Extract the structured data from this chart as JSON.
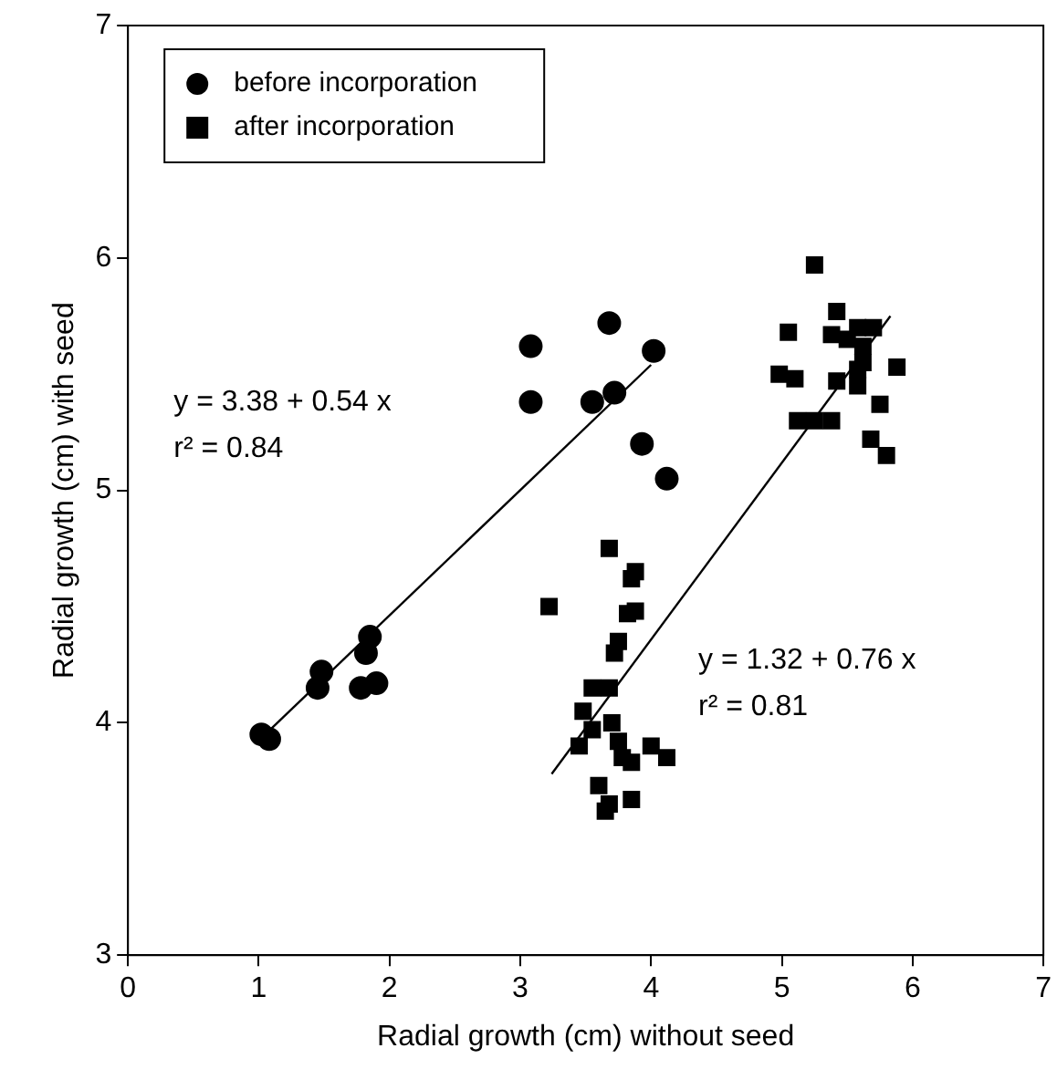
{
  "chart_data": {
    "type": "scatter",
    "xlabel": "Radial growth (cm) without seed",
    "ylabel": "Radial growth (cm) with seed",
    "xlim": [
      0,
      7
    ],
    "xticks": [
      0,
      1,
      2,
      3,
      4,
      5,
      6,
      7
    ],
    "ylim": [
      3,
      7
    ],
    "yticks": [
      3,
      4,
      5,
      6,
      7
    ],
    "grid": false,
    "legend": "top left",
    "series": [
      {
        "name": "before incorporation",
        "color": "#000000",
        "marker": "circle",
        "x": [
          1.02,
          1.08,
          1.45,
          1.48,
          1.78,
          1.82,
          1.85,
          1.9,
          3.08,
          3.08,
          3.55,
          3.68,
          3.72,
          3.93,
          4.02,
          4.12
        ],
        "values": [
          3.95,
          3.93,
          4.15,
          4.22,
          4.15,
          4.3,
          4.37,
          4.17,
          5.62,
          5.38,
          5.38,
          5.72,
          5.42,
          5.2,
          5.6,
          5.05
        ]
      },
      {
        "name": "after incorporation",
        "color": "#000000",
        "marker": "square",
        "x": [
          3.22,
          3.68,
          3.85,
          3.88,
          3.82,
          3.88,
          3.75,
          3.72,
          3.68,
          3.55,
          3.48,
          3.55,
          3.45,
          3.7,
          3.75,
          3.78,
          3.85,
          4.0,
          4.12,
          3.6,
          3.65,
          3.68,
          3.85,
          5.25,
          5.42,
          5.05,
          5.38,
          5.5,
          5.58,
          5.7,
          5.62,
          4.98,
          5.1,
          5.42,
          5.58,
          5.58,
          5.62,
          5.88,
          5.75,
          5.12,
          5.25,
          5.38,
          5.68,
          5.8
        ],
        "values": [
          4.5,
          4.75,
          4.62,
          4.65,
          4.47,
          4.48,
          4.35,
          4.3,
          4.15,
          4.15,
          4.05,
          3.97,
          3.9,
          4.0,
          3.92,
          3.85,
          3.83,
          3.9,
          3.85,
          3.73,
          3.62,
          3.65,
          3.67,
          5.97,
          5.77,
          5.68,
          5.67,
          5.65,
          5.7,
          5.7,
          5.62,
          5.5,
          5.48,
          5.47,
          5.52,
          5.45,
          5.55,
          5.53,
          5.37,
          5.3,
          5.3,
          5.3,
          5.22,
          5.15
        ]
      },
      {
        "type": "line",
        "color": "#000000",
        "marker": "none",
        "line_style": "solid",
        "x": [
          1.05,
          4.0
        ],
        "values": [
          3.95,
          5.54
        ]
      },
      {
        "type": "line",
        "color": "#000000",
        "marker": "none",
        "line_style": "solid",
        "x": [
          3.24,
          5.83
        ],
        "values": [
          3.78,
          5.75
        ]
      }
    ],
    "annotations": [
      "y = 3.38 + 0.54 x",
      "r² = 0.84",
      "y = 1.32 + 0.76 x",
      "r² = 0.81"
    ]
  }
}
